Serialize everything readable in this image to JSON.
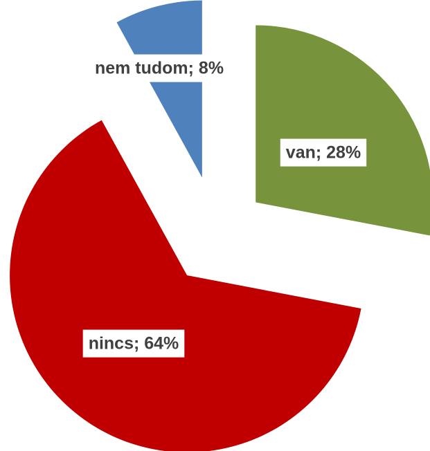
{
  "chart_data": {
    "type": "pie",
    "values": [
      28,
      64,
      8
    ],
    "value_labels": [
      "van; 28%",
      "nincs; 64%",
      "nem tudom; 8%"
    ],
    "colors": [
      "#77933c",
      "#c00000",
      "#4f81bd"
    ]
  }
}
